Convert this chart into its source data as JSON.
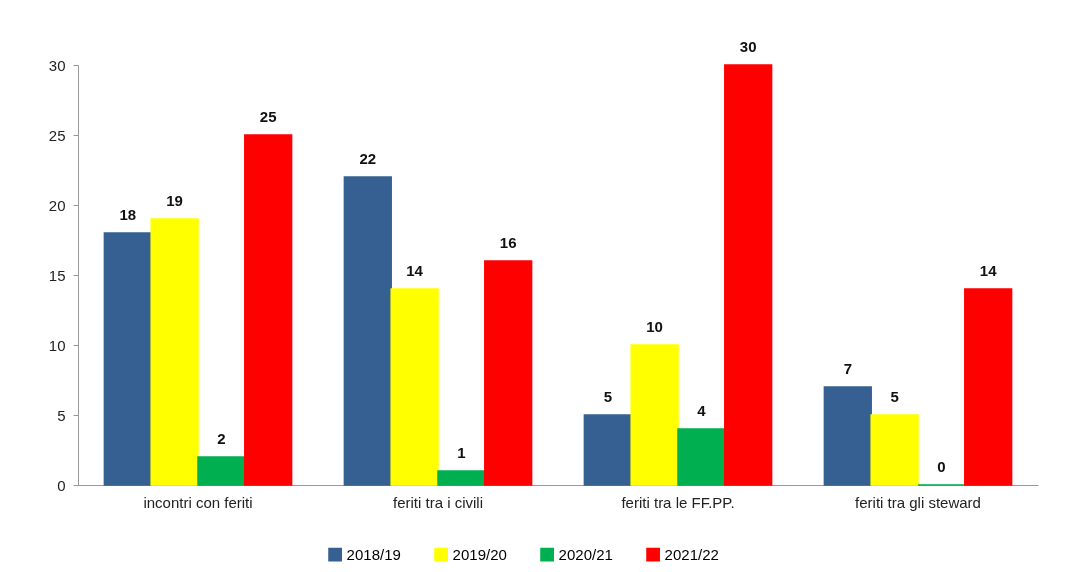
{
  "chart_data": {
    "type": "bar",
    "categories": [
      "incontri con feriti",
      "feriti tra i civili",
      "feriti tra le FF.PP.",
      "feriti tra gli steward"
    ],
    "series": [
      {
        "name": "2018/19",
        "color": "#376092",
        "values": [
          18,
          22,
          5,
          7
        ]
      },
      {
        "name": "2019/20",
        "color": "#ffff00",
        "values": [
          19,
          14,
          10,
          5
        ]
      },
      {
        "name": "2020/21",
        "color": "#00b050",
        "values": [
          2,
          1,
          4,
          0
        ]
      },
      {
        "name": "2021/22",
        "color": "#ff0000",
        "values": [
          25,
          16,
          30,
          14
        ]
      }
    ],
    "ylim": [
      0,
      30
    ],
    "yticks": [
      0,
      5,
      10,
      15,
      20,
      25,
      30
    ],
    "grid": false,
    "legend": "bottom",
    "data_labels": true
  }
}
